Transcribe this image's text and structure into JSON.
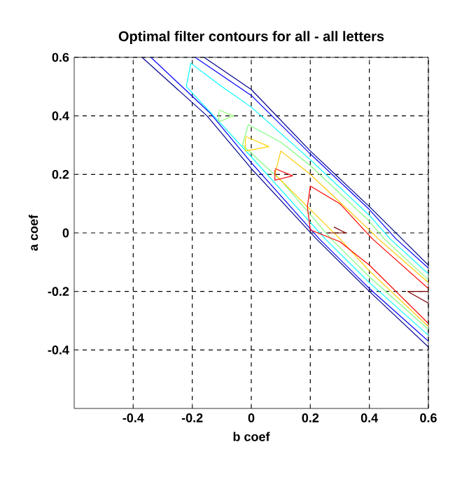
{
  "chart_data": {
    "type": "line",
    "title": "Optimal filter contours for all - all letters",
    "xlabel": "b coef",
    "ylabel": "a coef",
    "xlim": [
      -0.6,
      0.6
    ],
    "ylim": [
      -0.6,
      0.6
    ],
    "xticks": [
      -0.4,
      -0.2,
      0,
      0.2,
      0.4,
      0.6
    ],
    "yticks": [
      -0.4,
      -0.2,
      0,
      0.2,
      0.4,
      0.6
    ],
    "grid": true,
    "marker": "none",
    "line_style": "solid",
    "series": [
      {
        "color": "#00008f",
        "x": [
          -0.37,
          -0.15,
          0,
          0.22,
          0.4,
          0.6,
          null,
          -0.16,
          0,
          0.2,
          0.4,
          0.51,
          0.6
        ],
        "values": [
          0.6,
          0.4,
          0.22,
          -0.02,
          -0.2,
          -0.39,
          null,
          0.6,
          0.49,
          0.28,
          0.09,
          -0.02,
          -0.11
        ]
      },
      {
        "color": "#0000ff",
        "x": [
          -0.34,
          -0.14,
          0,
          0.23,
          0.4,
          0.6,
          null,
          -0.19,
          0,
          0.2,
          0.4,
          0.49,
          0.6
        ],
        "values": [
          0.6,
          0.41,
          0.24,
          -0.02,
          -0.19,
          -0.37,
          null,
          0.6,
          0.47,
          0.27,
          0.08,
          -0.02,
          -0.12
        ]
      },
      {
        "color": "#00ffff",
        "x": [
          0.6,
          0.4,
          0.25,
          0,
          -0.1,
          -0.22,
          -0.205,
          -0.1,
          0,
          0.2,
          0.4,
          0.47,
          0.6
        ],
        "values": [
          -0.35,
          -0.17,
          -0.02,
          0.26,
          0.37,
          0.5,
          0.58,
          0.5,
          0.43,
          0.25,
          0.06,
          -0.02,
          -0.14
        ]
      },
      {
        "color": "#80ff80",
        "x": [
          0.6,
          0.4,
          0.27,
          0.1,
          -0.03,
          -0.01,
          0.1,
          0.2,
          0.4,
          0.45,
          0.6
        ],
        "values": [
          -0.33,
          -0.15,
          -0.02,
          0.18,
          0.3,
          0.37,
          0.31,
          0.23,
          0.04,
          -0.02,
          -0.16
        ]
      },
      {
        "color": "#90ff70",
        "x": [
          -0.11,
          -0.06,
          -0.11,
          -0.11
        ],
        "values": [
          0.42,
          0.4,
          0.38,
          0.415
        ]
      },
      {
        "color": "#ffc800",
        "x": [
          0.6,
          0.4,
          0.3,
          0.15,
          0.08,
          0.1,
          0.2,
          0.4,
          0.43,
          0.6
        ],
        "values": [
          -0.32,
          -0.13,
          -0.02,
          0.13,
          0.2,
          0.28,
          0.2,
          0.01,
          -0.02,
          -0.17
        ]
      },
      {
        "color": "#ffd400",
        "x": [
          -0.02,
          0.06,
          -0.02,
          -0.02
        ],
        "values": [
          0.33,
          0.295,
          0.28,
          0.325
        ]
      },
      {
        "color": "#ff0000",
        "x": [
          0.6,
          0.4,
          0.3,
          0.2,
          0.19,
          0.2,
          0.3,
          0.41,
          0.6
        ],
        "values": [
          -0.31,
          -0.11,
          -0.03,
          0.01,
          0.09,
          0.16,
          0.1,
          -0.02,
          -0.19
        ]
      },
      {
        "color": "#f01010",
        "x": [
          0.08,
          0.14,
          0.08,
          0.08
        ],
        "values": [
          0.22,
          0.195,
          0.18,
          0.215
        ]
      },
      {
        "color": "#800000",
        "x": [
          0.26,
          0.32,
          0.28
        ],
        "values": [
          0.0,
          0.0,
          0.02
        ]
      },
      {
        "color": "#800000",
        "x": [
          0.6,
          0.53,
          0.6
        ],
        "values": [
          -0.2,
          -0.2,
          -0.24
        ]
      }
    ]
  }
}
